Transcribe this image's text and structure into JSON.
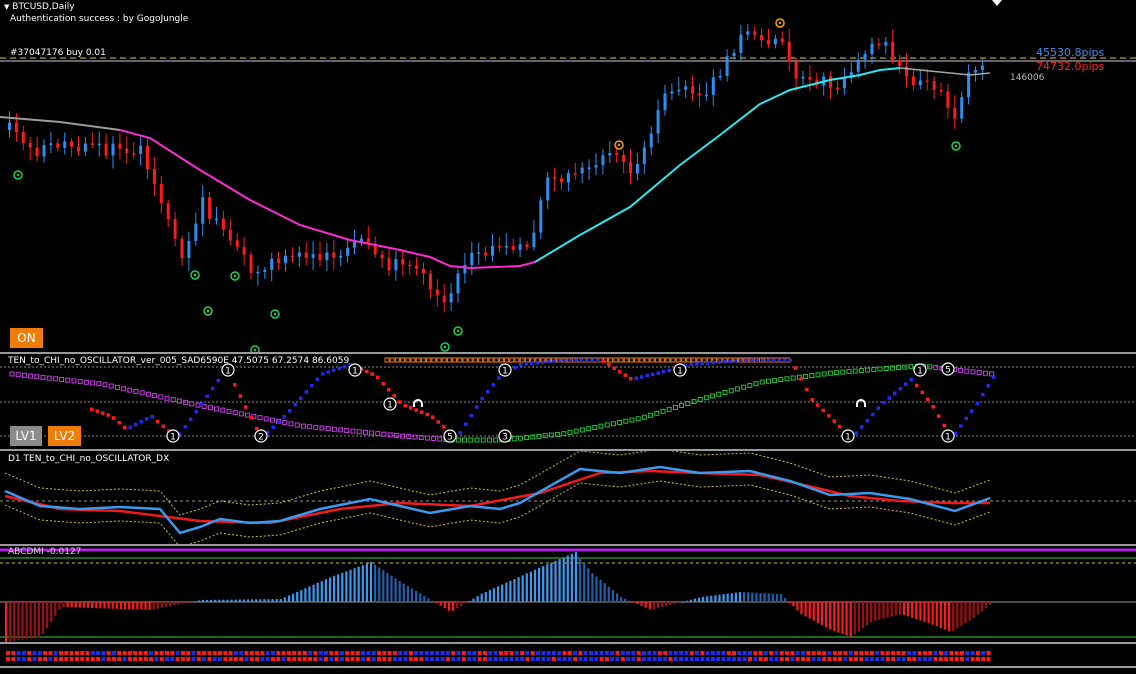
{
  "main": {
    "symbol_title": "BTCUSD,Daily",
    "auth_text": "Authentication success : by GogoJungle",
    "order_label": "#37047176 buy 0.01",
    "price_label_blue": "45530.8pips",
    "price_label_red": "74732.0pips",
    "price_label_grey": "146006",
    "on_button": "ON",
    "colors": {
      "bull": "#2b8ff0",
      "bear": "#ff1a1a",
      "ma_up": "#2ee8f0",
      "ma_down": "#ff2bd0",
      "signal_green": "#21d14d",
      "signal_orange": "#f5a400"
    }
  },
  "indicator1": {
    "title": "TEN_to_CHI_no_OSCILLATOR_ver_005_SAD6590E 47.5075 67.2574 86.6059",
    "lv1_button": "LV1",
    "lv2_button": "LV2",
    "badges": [
      "1",
      "1",
      "1",
      "1",
      "1",
      "1",
      "2",
      "5",
      "1",
      "1",
      "3",
      "5",
      "1"
    ]
  },
  "indicator2": {
    "title": "D1 TEN_to_CHI_no_OSCILLATOR_DX"
  },
  "indicator3": {
    "title": "ABCDMI  -0.0127"
  }
}
